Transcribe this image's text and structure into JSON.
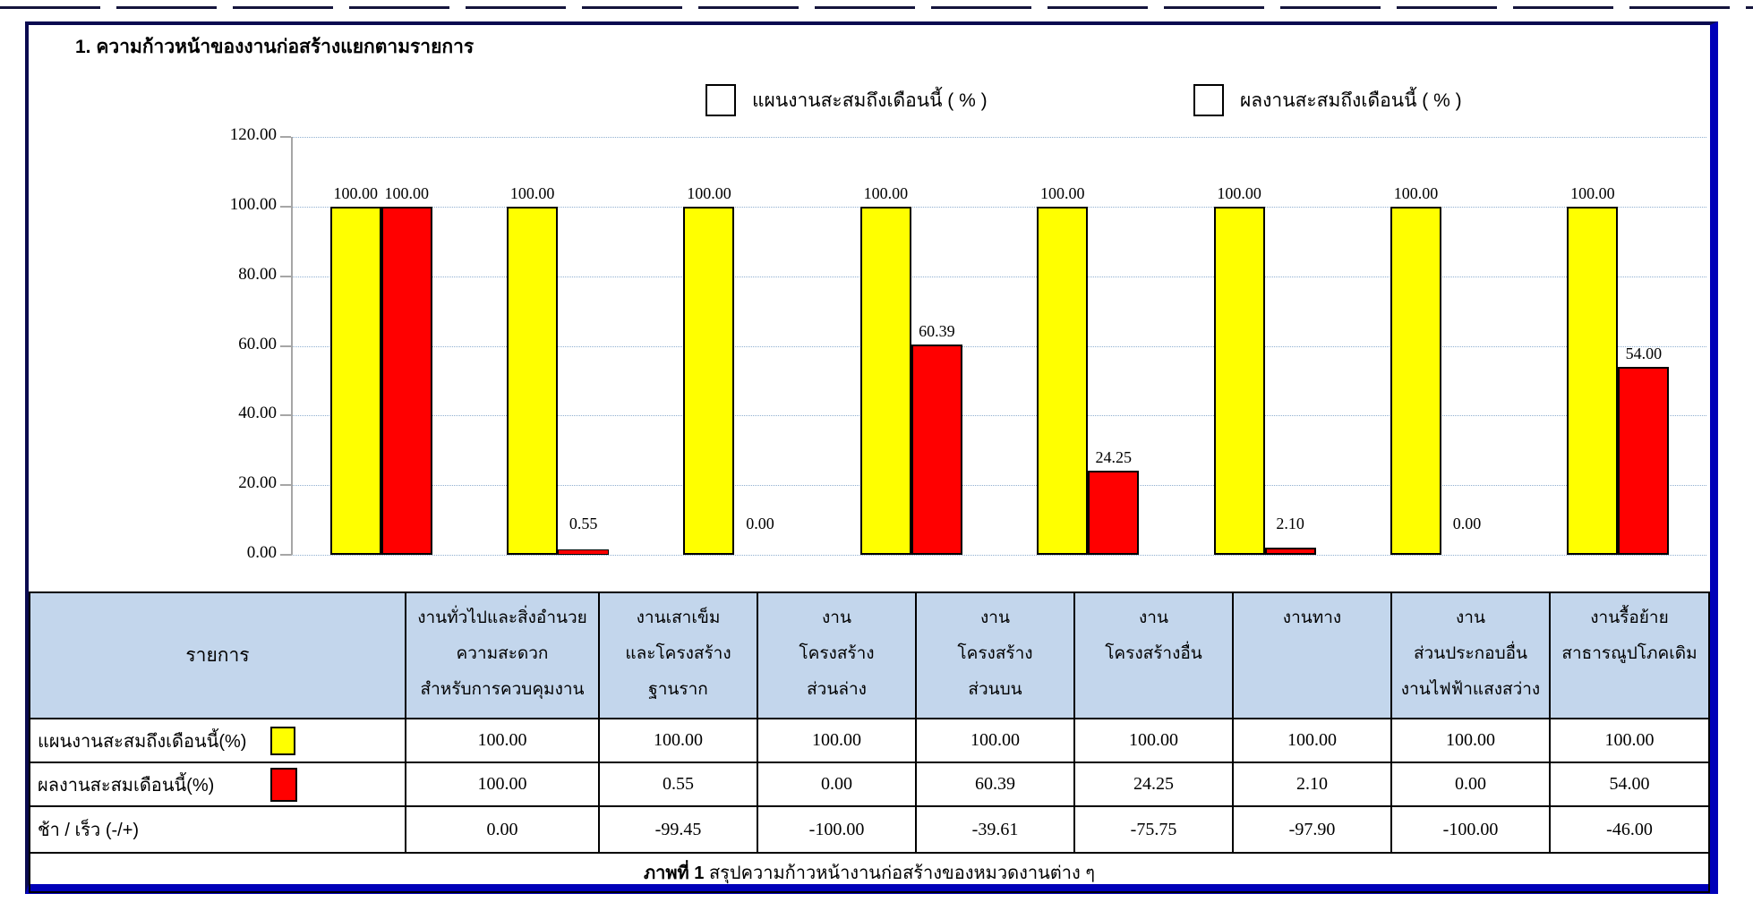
{
  "page": {
    "title": "1. ความก้าวหน้าของงานก่อสร้างแยกตามรายการ"
  },
  "colors": {
    "plan": "#FFFF00",
    "actual": "#FF0000",
    "header_fill": "#C3D6EC",
    "gridline": "#8FAFD0",
    "frame_dark": "#0A0A50",
    "frame_blue": "#0000B8"
  },
  "legend": {
    "plan_label": "แผนงานสะสมถึงเดือนนี้ ( % )",
    "actual_label": "ผลงานสะสมถึงเดือนนี้ ( % )"
  },
  "chart_data": {
    "type": "bar",
    "title": "1. ความก้าวหน้าของงานก่อสร้างแยกตามรายการ",
    "categories": [
      "งานทั่วไปและสิ่งอำนวยความสะดวกสำหรับการควบคุมงาน",
      "งานเสาเข็มและโครงสร้างฐานราก",
      "งานโครงสร้างส่วนล่าง",
      "งานโครงสร้างส่วนบน",
      "งานโครงสร้างอื่น",
      "งานทาง",
      "งานส่วนประกอบอื่น งานไฟฟ้าแสงสว่าง",
      "งานรื้อย้ายสาธารณูปโภคเดิม"
    ],
    "series": [
      {
        "name": "แผนงานสะสมถึงเดือนนี้ ( % )",
        "color": "#FFFF00",
        "values": [
          100.0,
          100.0,
          100.0,
          100.0,
          100.0,
          100.0,
          100.0,
          100.0
        ],
        "labels": [
          "100.00",
          "100.00",
          "100.00",
          "100.00",
          "100.00",
          "100.00",
          "100.00",
          "100.00"
        ]
      },
      {
        "name": "ผลงานสะสมถึงเดือนนี้ ( % )",
        "color": "#FF0000",
        "values": [
          100.0,
          0.55,
          0.0,
          60.39,
          24.25,
          2.1,
          0.0,
          54.0
        ],
        "labels": [
          "100.00",
          "0.55",
          "0.00",
          "60.39",
          "24.25",
          "2.10",
          "0.00",
          "54.00"
        ]
      }
    ],
    "ylim": [
      0,
      120
    ],
    "yticks": [
      "0.00",
      "20.00",
      "40.00",
      "60.00",
      "80.00",
      "100.00",
      "120.00"
    ],
    "grid": true,
    "legend_position": "top"
  },
  "table": {
    "header_col": "รายการ",
    "columns": [
      [
        "งานทั่วไปและสิ่งอำนวย",
        "ความสะดวก",
        "สำหรับการควบคุมงาน"
      ],
      [
        "งานเสาเข็ม",
        "และโครงสร้าง",
        "ฐานราก"
      ],
      [
        "งาน",
        "โครงสร้าง",
        "ส่วนล่าง"
      ],
      [
        "งาน",
        "โครงสร้าง",
        "ส่วนบน"
      ],
      [
        "งาน",
        "โครงสร้างอื่น"
      ],
      [
        "งานทาง"
      ],
      [
        "งาน",
        "ส่วนประกอบอื่น",
        "งานไฟฟ้าแสงสว่าง"
      ],
      [
        "งานรื้อย้าย",
        "สาธารณูปโภคเดิม"
      ]
    ],
    "rows": [
      {
        "label": "แผนงานสะสมถึงเดือนนี้(%)",
        "swatch": "plan",
        "values": [
          "100.00",
          "100.00",
          "100.00",
          "100.00",
          "100.00",
          "100.00",
          "100.00",
          "100.00"
        ]
      },
      {
        "label": "ผลงานสะสมเดือนนี้(%)",
        "swatch": "actual",
        "values": [
          "100.00",
          "0.55",
          "0.00",
          "60.39",
          "24.25",
          "2.10",
          "0.00",
          "54.00"
        ]
      },
      {
        "label": "ช้า / เร็ว  (-/+)",
        "swatch": null,
        "values": [
          "0.00",
          "-99.45",
          "-100.00",
          "-39.61",
          "-75.75",
          "-97.90",
          "-100.00",
          "-46.00"
        ]
      }
    ],
    "caption": {
      "bold": "ภาพที่ 1",
      "text": " สรุปความก้าวหน้างานก่อสร้างของหมวดงานต่าง ๆ"
    }
  }
}
